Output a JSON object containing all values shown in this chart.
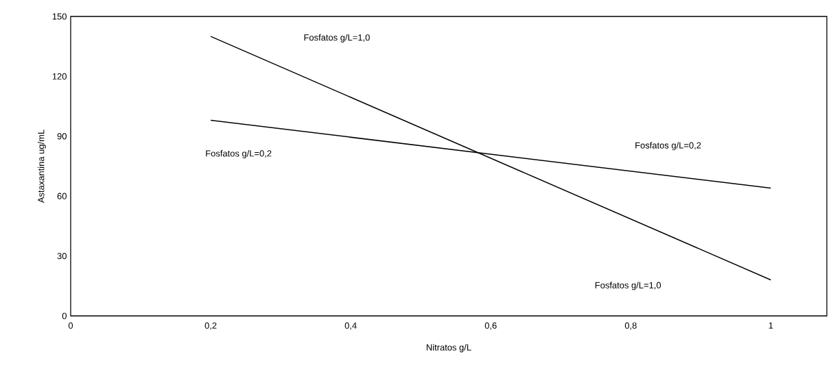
{
  "chart_data": {
    "type": "line",
    "xlabel": "Nitratos g/L",
    "ylabel": "Astaxantina ug/mL",
    "xlim": [
      0,
      1.08
    ],
    "xticks": [
      {
        "value": 0,
        "label": "0"
      },
      {
        "value": 0.2,
        "label": "0,2"
      },
      {
        "value": 0.4,
        "label": "0,4"
      },
      {
        "value": 0.6,
        "label": "0,6"
      },
      {
        "value": 0.8,
        "label": "0,8"
      },
      {
        "value": 1,
        "label": "1"
      }
    ],
    "ylim": [
      0,
      150
    ],
    "yticks": [
      0,
      30,
      60,
      90,
      120,
      150
    ],
    "x": [
      0.2,
      1
    ],
    "series": [
      {
        "color": "#000000",
        "values": [
          140,
          18
        ]
      },
      {
        "color": "#000000",
        "values": [
          98,
          64
        ]
      }
    ],
    "annotations": [
      "Fosfatos g/L=1,0",
      "Fosfatos g/L=0,2",
      "Fosfatos g/L=0,2",
      "Fosfatos g/L=1,0"
    ],
    "grid": false,
    "legend": false,
    "marker": "none",
    "line_style": "solid"
  }
}
